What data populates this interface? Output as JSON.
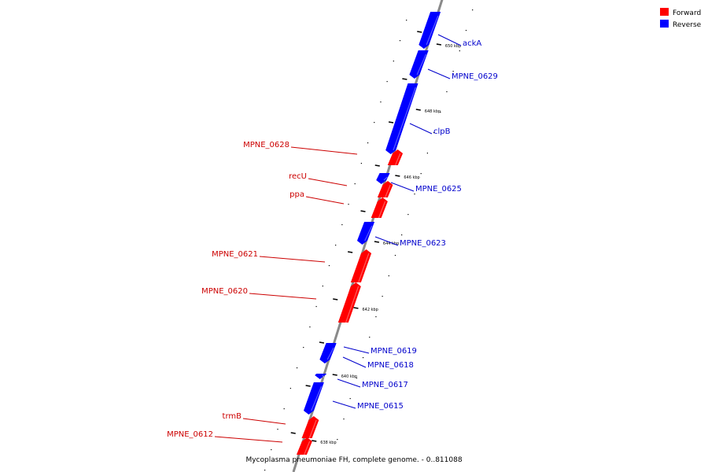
{
  "caption": "Mycoplasma pneumoniae FH, complete genome. - 0..811088",
  "legend": [
    {
      "label": "Forward",
      "color": "#ff0000"
    },
    {
      "label": "Reverse",
      "color": "#0000ff"
    }
  ],
  "colors": {
    "forward": "#ff0000",
    "forward_label": "#cc0000",
    "reverse": "#0000ff",
    "reverse_label": "#0000cc",
    "axis": "#888888"
  },
  "ticks": [
    "638 kbp",
    "640 kbp",
    "642 kbp",
    "644 kbp",
    "646 kbp",
    "648 kbp",
    "650 kbp"
  ],
  "genes": [
    {
      "name": "ackA",
      "strand": "reverse"
    },
    {
      "name": "MPNE_0629",
      "strand": "reverse"
    },
    {
      "name": "clpB",
      "strand": "reverse"
    },
    {
      "name": "MPNE_0628",
      "strand": "forward"
    },
    {
      "name": "MPNE_0625",
      "strand": "reverse"
    },
    {
      "name": "recU",
      "strand": "forward"
    },
    {
      "name": "ppa",
      "strand": "forward"
    },
    {
      "name": "MPNE_0623",
      "strand": "reverse"
    },
    {
      "name": "MPNE_0621",
      "strand": "forward"
    },
    {
      "name": "MPNE_0620",
      "strand": "forward"
    },
    {
      "name": "MPNE_0619",
      "strand": "reverse"
    },
    {
      "name": "MPNE_0618",
      "strand": "reverse"
    },
    {
      "name": "MPNE_0617",
      "strand": "reverse"
    },
    {
      "name": "MPNE_0615",
      "strand": "reverse"
    },
    {
      "name": "trmB",
      "strand": "forward"
    },
    {
      "name": "MPNE_0612",
      "strand": "forward"
    }
  ]
}
